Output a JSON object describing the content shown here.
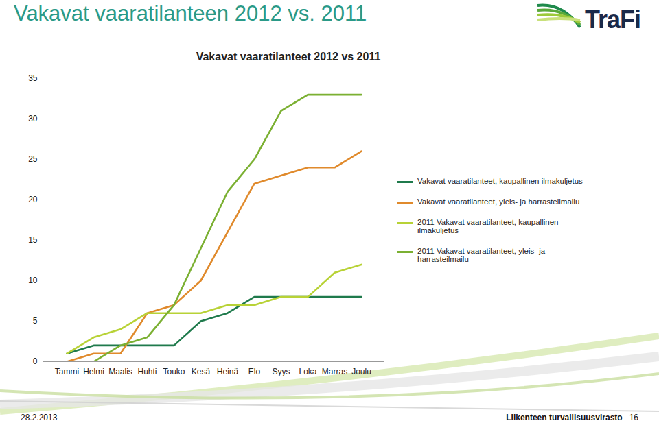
{
  "slide": {
    "title": "Vakavat vaaratilanteen 2012 vs. 2011",
    "logo": "TraFi",
    "footer": {
      "date": "28.2.2013",
      "organization": "Liikenteen turvallisuusvirasto",
      "page": "16"
    }
  },
  "chart_data": {
    "type": "line",
    "title": "Vakavat vaaratilanteet 2012 vs 2011",
    "categories": [
      "Tammi",
      "Helmi",
      "Maalis",
      "Huhti",
      "Touko",
      "Kesä",
      "Heinä",
      "Elo",
      "Syys",
      "Loka",
      "Marras",
      "Joulu"
    ],
    "series": [
      {
        "name": "Vakavat vaaratilanteet, kaupallinen ilmakuljetus",
        "color": "#1f7a4c",
        "values": [
          1,
          2,
          2,
          2,
          2,
          5,
          6,
          8,
          8,
          8,
          8,
          8
        ]
      },
      {
        "name": "Vakavat vaaratilanteet, yleis- ja harrasteilmailu",
        "color": "#e08a2c",
        "values": [
          0,
          1,
          1,
          6,
          7,
          10,
          16,
          22,
          23,
          24,
          24,
          26
        ]
      },
      {
        "name": "2011 Vakavat vaaratilanteet, kaupallinen ilmakuljetus",
        "color": "#b8d236",
        "values": [
          1,
          3,
          4,
          6,
          6,
          6,
          7,
          7,
          8,
          8,
          11,
          12
        ]
      },
      {
        "name": "2011 Vakavat vaaratilanteet, yleis- ja harrasteilmailu",
        "color": "#7bb032",
        "values": [
          0,
          0,
          2,
          3,
          7,
          14,
          21,
          25,
          31,
          33,
          33,
          33
        ]
      }
    ],
    "ylim": [
      0,
      35
    ],
    "yticks": [
      0,
      5,
      10,
      15,
      20,
      25,
      30,
      35
    ],
    "grid": false,
    "legend": "right"
  }
}
